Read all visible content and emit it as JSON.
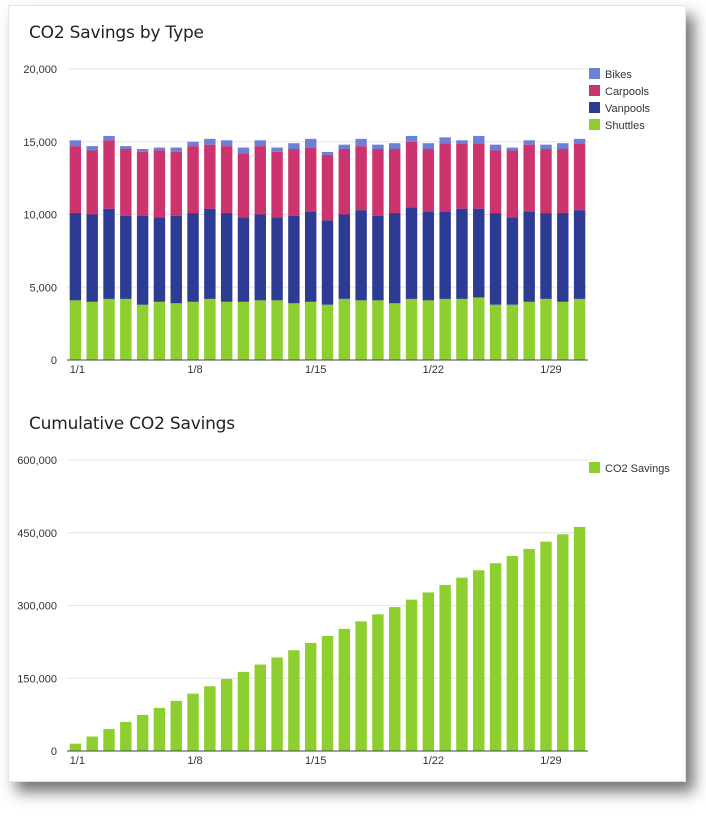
{
  "chart_data": [
    {
      "type": "bar",
      "stacked": true,
      "title": "CO2 Savings by Type",
      "x": [
        "1/1",
        "1/2",
        "1/3",
        "1/4",
        "1/5",
        "1/6",
        "1/7",
        "1/8",
        "1/9",
        "1/10",
        "1/11",
        "1/12",
        "1/13",
        "1/14",
        "1/15",
        "1/16",
        "1/17",
        "1/18",
        "1/19",
        "1/20",
        "1/21",
        "1/22",
        "1/23",
        "1/24",
        "1/25",
        "1/26",
        "1/27",
        "1/28",
        "1/29",
        "1/30",
        "1/31"
      ],
      "xticks": [
        "1/1",
        "1/8",
        "1/15",
        "1/22",
        "1/29"
      ],
      "ylim": [
        0,
        20000
      ],
      "yticks": [
        "0",
        "5,000",
        "10,000",
        "15,000",
        "20,000"
      ],
      "legend_position": "top-right",
      "series": [
        {
          "name": "Shuttles",
          "color": "#8ccf2e",
          "values": [
            4100,
            4000,
            4200,
            4200,
            3800,
            4000,
            3900,
            4000,
            4200,
            4000,
            4000,
            4100,
            4100,
            3900,
            4000,
            3800,
            4200,
            4100,
            4100,
            3900,
            4200,
            4100,
            4200,
            4200,
            4300,
            3800,
            3800,
            4000,
            4200,
            4000,
            4200
          ]
        },
        {
          "name": "Vanpools",
          "color": "#2e3b94",
          "values": [
            6000,
            6000,
            6200,
            5700,
            6100,
            5800,
            6000,
            6100,
            6200,
            6100,
            5800,
            5900,
            5700,
            6000,
            6200,
            5800,
            5800,
            6200,
            5800,
            6200,
            6300,
            6100,
            6000,
            6200,
            6100,
            6300,
            6000,
            6200,
            5900,
            6100,
            6100
          ]
        },
        {
          "name": "Carpools",
          "color": "#cc3470",
          "values": [
            4600,
            4400,
            4700,
            4600,
            4400,
            4600,
            4400,
            4600,
            4400,
            4600,
            4400,
            4700,
            4500,
            4600,
            4400,
            4500,
            4500,
            4400,
            4600,
            4400,
            4500,
            4300,
            4700,
            4500,
            4500,
            4300,
            4600,
            4600,
            4400,
            4400,
            4600
          ]
        },
        {
          "name": "Bikes",
          "color": "#6e7fd6",
          "values": [
            400,
            300,
            300,
            200,
            200,
            200,
            300,
            300,
            400,
            400,
            400,
            400,
            300,
            400,
            600,
            200,
            300,
            500,
            300,
            400,
            400,
            400,
            400,
            200,
            500,
            400,
            200,
            300,
            300,
            400,
            300
          ]
        }
      ]
    },
    {
      "type": "bar",
      "title": "Cumulative CO2 Savings",
      "x": [
        "1/1",
        "1/2",
        "1/3",
        "1/4",
        "1/5",
        "1/6",
        "1/7",
        "1/8",
        "1/9",
        "1/10",
        "1/11",
        "1/12",
        "1/13",
        "1/14",
        "1/15",
        "1/16",
        "1/17",
        "1/18",
        "1/19",
        "1/20",
        "1/21",
        "1/22",
        "1/23",
        "1/24",
        "1/25",
        "1/26",
        "1/27",
        "1/28",
        "1/29",
        "1/30",
        "1/31"
      ],
      "xticks": [
        "1/1",
        "1/8",
        "1/15",
        "1/22",
        "1/29"
      ],
      "ylim": [
        0,
        600000
      ],
      "yticks": [
        "0",
        "150,000",
        "300,000",
        "450,000",
        "600,000"
      ],
      "legend_position": "top-right",
      "series": [
        {
          "name": "CO2 Savings",
          "color": "#8ccf2e",
          "values": [
            15100,
            29800,
            45200,
            60000,
            74400,
            88900,
            103400,
            118300,
            133500,
            148600,
            163100,
            178200,
            192800,
            207700,
            222800,
            237100,
            251800,
            267300,
            281800,
            296700,
            312100,
            327000,
            342300,
            357400,
            372600,
            387200,
            401900,
            416600,
            431600,
            446800,
            462000
          ]
        }
      ]
    }
  ]
}
